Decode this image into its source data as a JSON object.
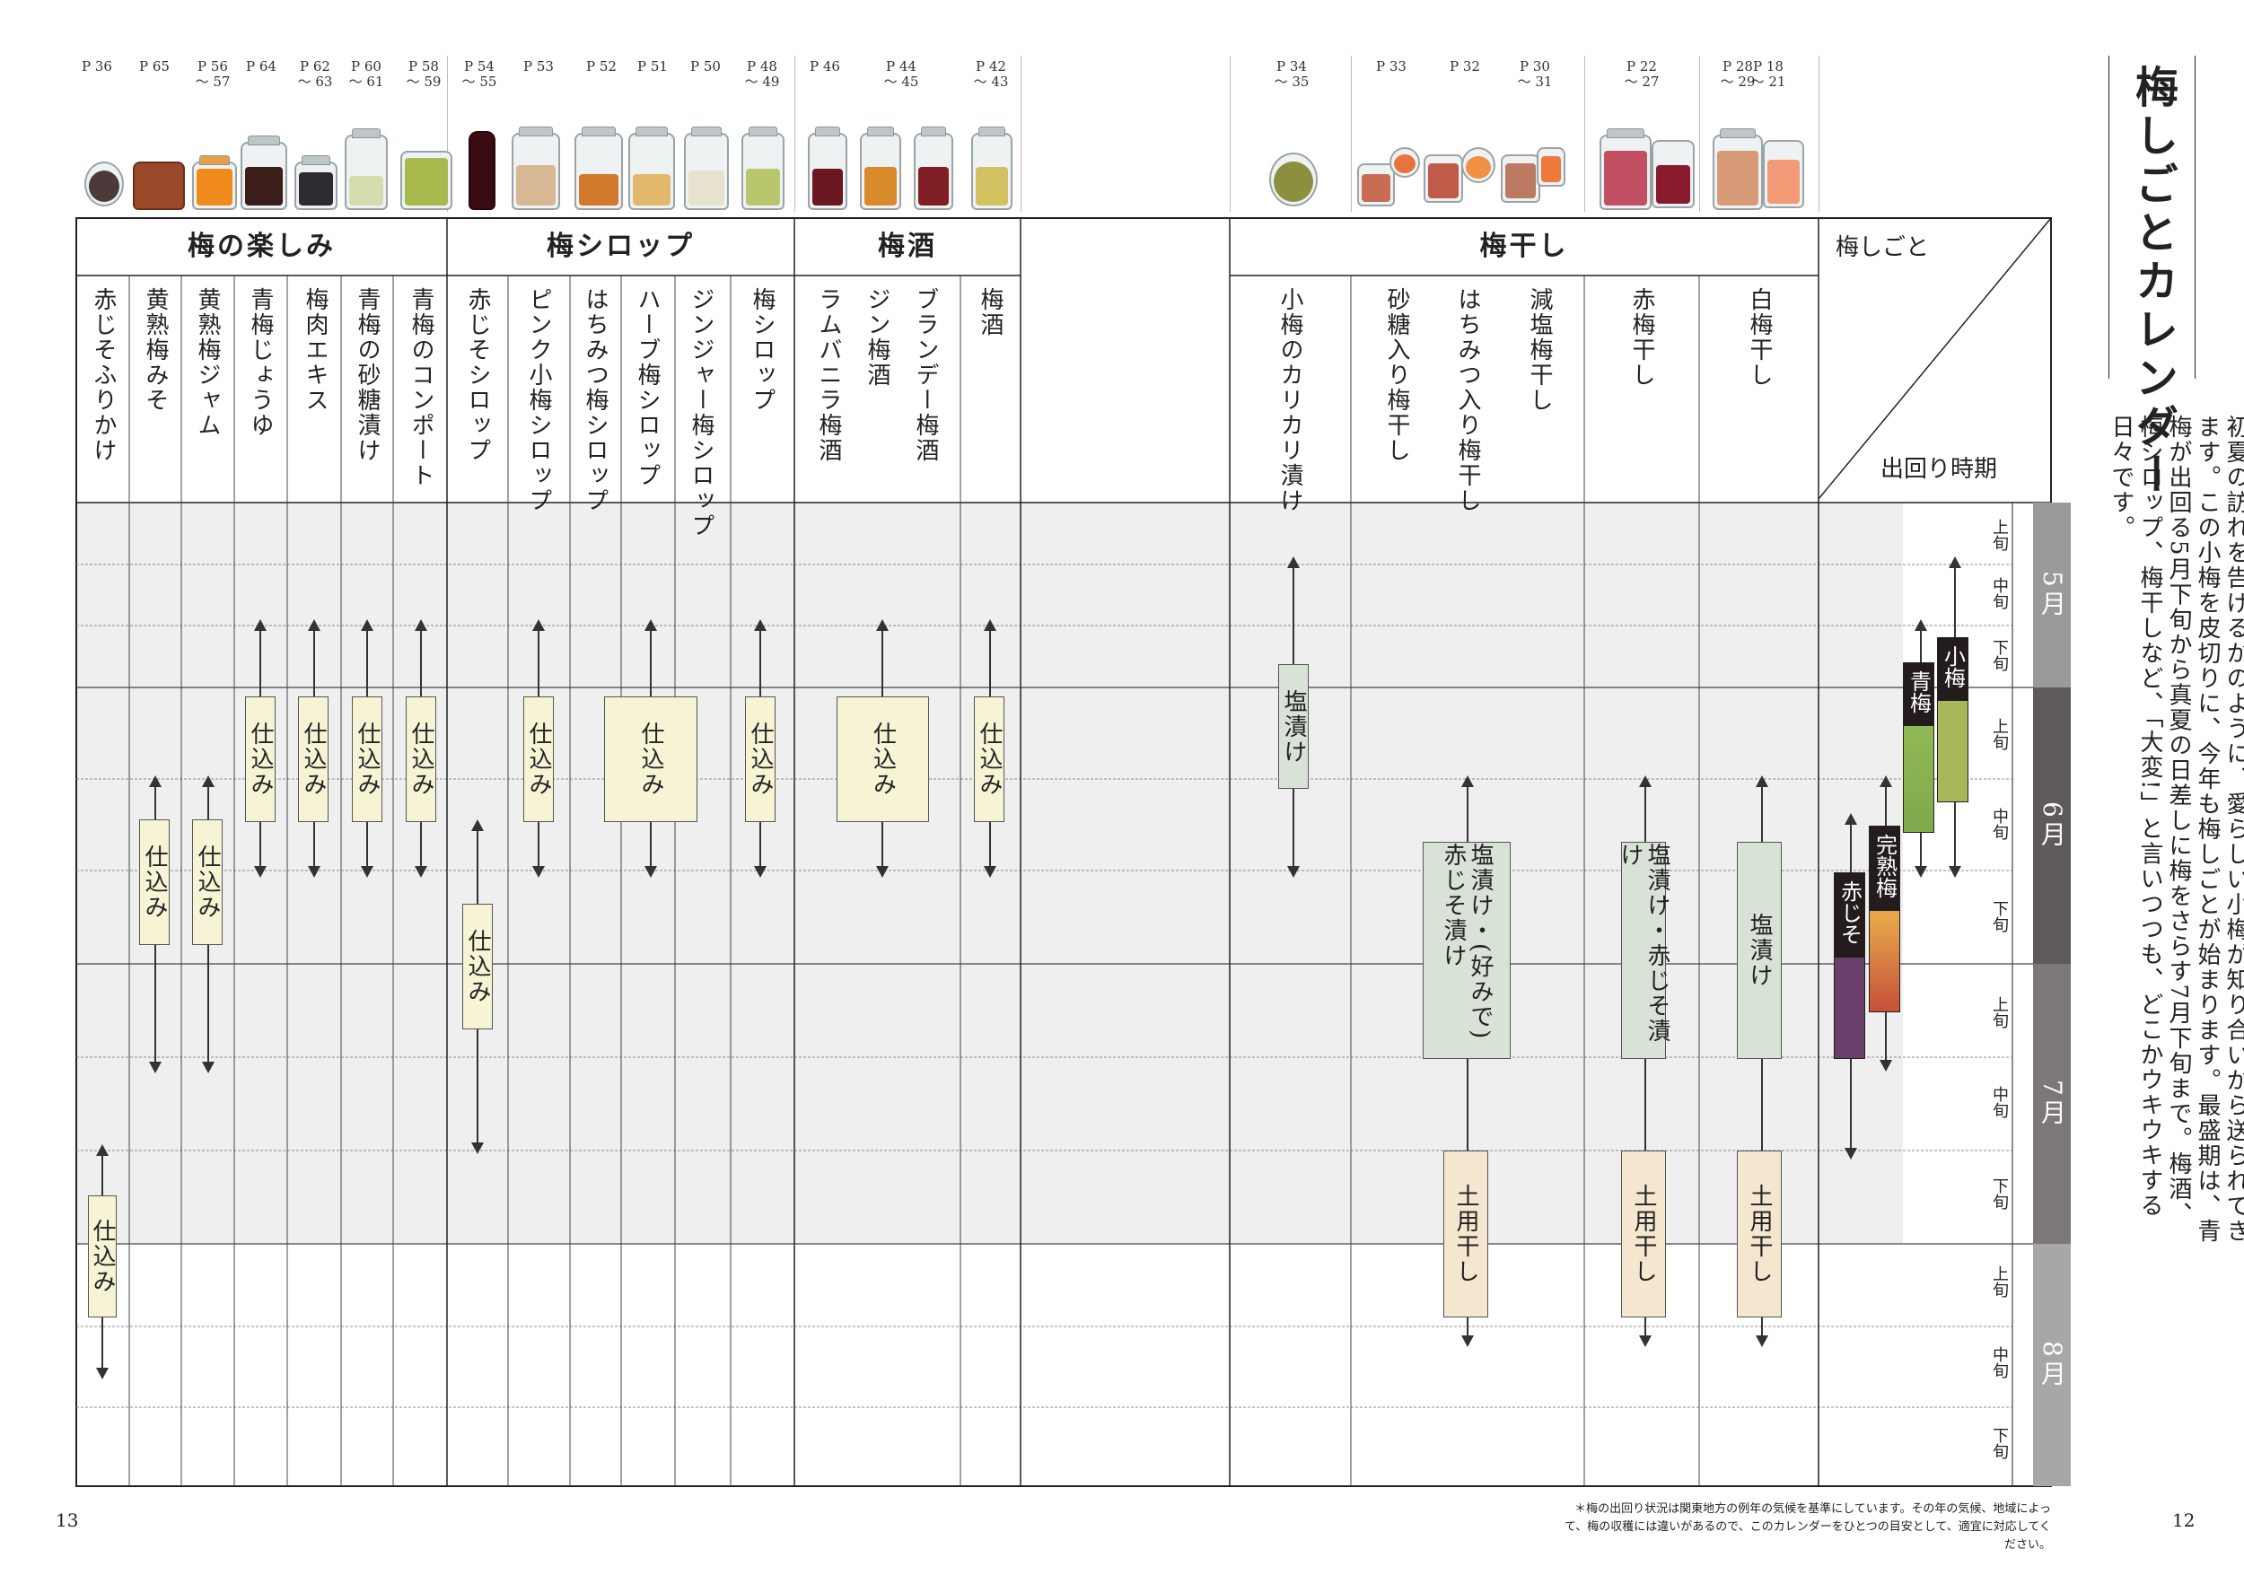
{
  "page_title": "梅しごとカレンダー",
  "intro_text": "初夏の訪れを告げるかのように、愛らしい小梅が知り合いから送られてきます。この小梅を皮切りに、今年も梅しごとが始まります。最盛期は、青梅が出回る5月下旬から真夏の日差しに梅をさらす7月下旬まで。梅酒、梅シロップ、梅干しなど、「大変!」と言いつつも、どこかウキウキする日々です。",
  "categories": {
    "tanoshimi": "梅の楽しみ",
    "syrup": "梅シロップ",
    "umeshu": "梅酒",
    "umeboshi": "梅干し"
  },
  "corner": {
    "top": "梅しごと",
    "bottom": "出回り時期"
  },
  "refs": [
    "P 36",
    "P 65",
    "P 56 〜 57",
    "P 64",
    "P 62 〜 63",
    "P 60 〜 61",
    "P 58 〜 59",
    "P 54 〜 55",
    "P 53",
    "P 52",
    "P 51",
    "P 50",
    "P 48 〜 49",
    "P 46",
    "P 44 〜 45",
    "P 42 〜 43",
    "P 34 〜 35",
    "P 33",
    "P 32",
    "P 30 〜 31",
    "P 22 〜 27",
    "P 28 〜 29",
    "P 18 〜 21"
  ],
  "columns": [
    "赤じそふりかけ",
    "黄熟梅みそ",
    "黄熟梅ジャム",
    "青梅じょうゆ",
    "梅肉エキス",
    "青梅の砂糖漬け",
    "青梅のコンポート",
    "赤じそシロップ",
    "ピンク小梅シロップ",
    "はちみつ梅シロップ",
    "ハーブ梅シロップ",
    "ジンジャー梅シロップ",
    "梅シロップ",
    "ラムバニラ梅酒",
    "ジン梅酒",
    "ブランデー梅酒",
    "梅酒",
    "小梅のカリカリ漬け",
    "砂糖入り梅干し",
    "はちみつ入り梅干し",
    "減塩梅干し",
    "赤梅干し",
    "白梅干し"
  ],
  "tasks": {
    "shikomi": "仕込み",
    "shiozuke": "塩漬け",
    "akajiso": "塩漬け・(好みで)赤じそ漬け",
    "shio_aka": "塩漬け・赤じそ漬け",
    "doyo": "土用干し"
  },
  "months": [
    "5月",
    "6月",
    "7月",
    "8月"
  ],
  "periods": [
    "上旬",
    "中旬",
    "下旬"
  ],
  "seasons": [
    "赤じそ",
    "完熟梅",
    "青梅",
    "小梅"
  ],
  "page_numbers": {
    "left": "13",
    "right": "12"
  },
  "footnote": "＊梅の出回り状況は関東地方の例年の気候を基準にしています。その年の気候、地域によって、梅の収穫には違いがあるので、このカレンダーをひとつの目安として、適宜に対応してください。",
  "colors": {
    "shikomi": "#f7f4d6",
    "shiozuke": "#d9e2d6",
    "doyo": "#f5e6cf",
    "month_dark": "#5e5a59",
    "month_light": "#9c9a99"
  }
}
